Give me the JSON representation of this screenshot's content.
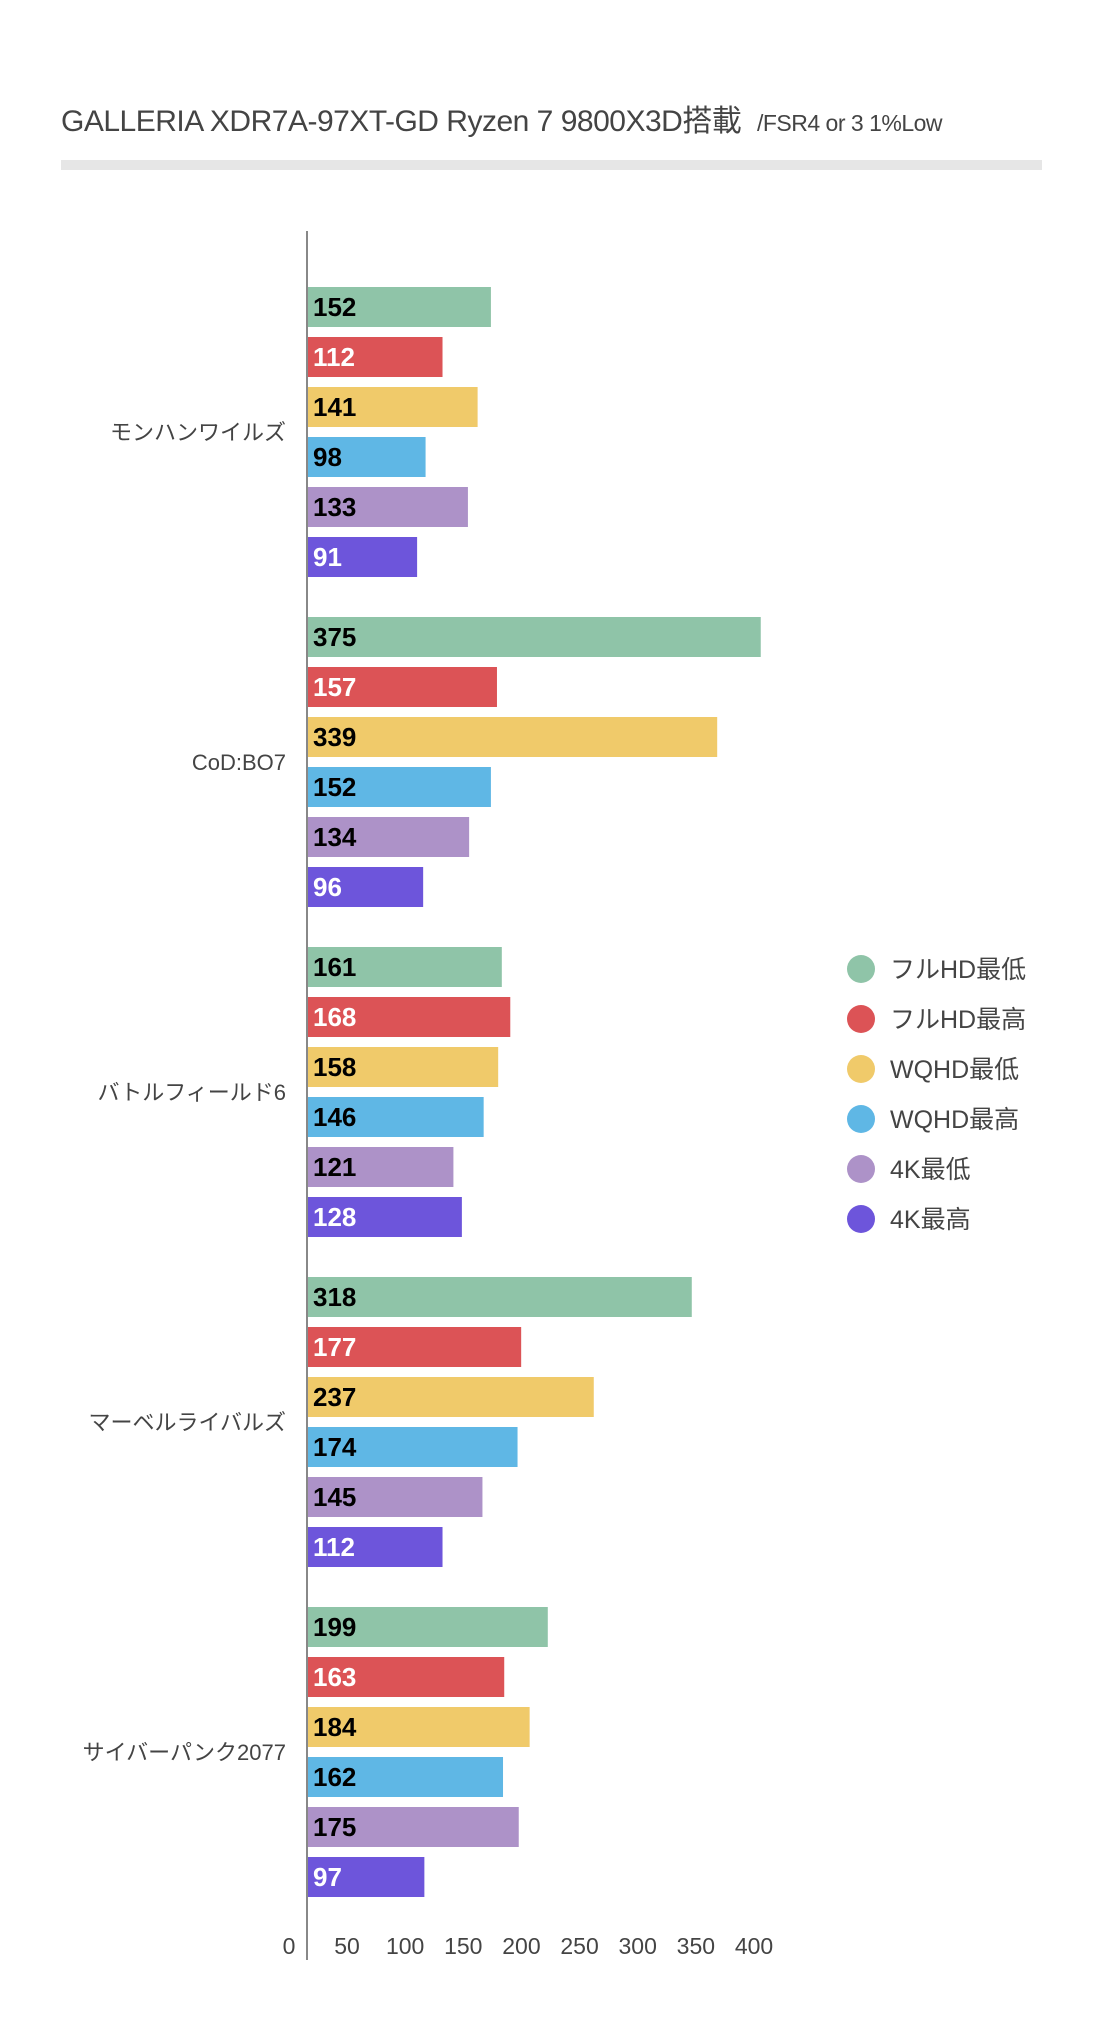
{
  "chart_data": {
    "type": "bar",
    "orientation": "horizontal",
    "title": "GALLERIA XDR7A-97XT-GD Ryzen 7 9800X3D搭載",
    "subtitle": "/FSR4 or 3 1%Low",
    "categories": [
      "モンハンワイルズ",
      "CoD:BO7",
      "バトルフィールド6",
      "マーベルライバルズ",
      "サイバーパンク2077"
    ],
    "series": [
      {
        "name": "フルHD最低",
        "color": "#8fc4a8",
        "label_color": "#000000",
        "values": [
          152,
          375,
          161,
          318,
          199
        ]
      },
      {
        "name": "フルHD最高",
        "color": "#dc5356",
        "label_color": "#ffffff",
        "values": [
          112,
          157,
          168,
          177,
          163
        ]
      },
      {
        "name": "WQHD最低",
        "color": "#f0ca6a",
        "label_color": "#000000",
        "values": [
          141,
          339,
          158,
          237,
          184
        ]
      },
      {
        "name": "WQHD最高",
        "color": "#5fb7e5",
        "label_color": "#000000",
        "values": [
          98,
          152,
          146,
          174,
          162
        ]
      },
      {
        "name": "4K最低",
        "color": "#ad92c8",
        "label_color": "#000000",
        "values": [
          133,
          134,
          121,
          145,
          175
        ]
      },
      {
        "name": "4K最高",
        "color": "#6d55db",
        "label_color": "#ffffff",
        "values": [
          91,
          96,
          128,
          112,
          97
        ]
      }
    ],
    "x_ticks": [
      0,
      50,
      100,
      150,
      200,
      250,
      300,
      350,
      400
    ],
    "xlim": [
      0,
      400
    ],
    "xlabel": "",
    "ylabel": "",
    "grid": false,
    "data_labels": "inside-start",
    "legend_position": "right"
  }
}
